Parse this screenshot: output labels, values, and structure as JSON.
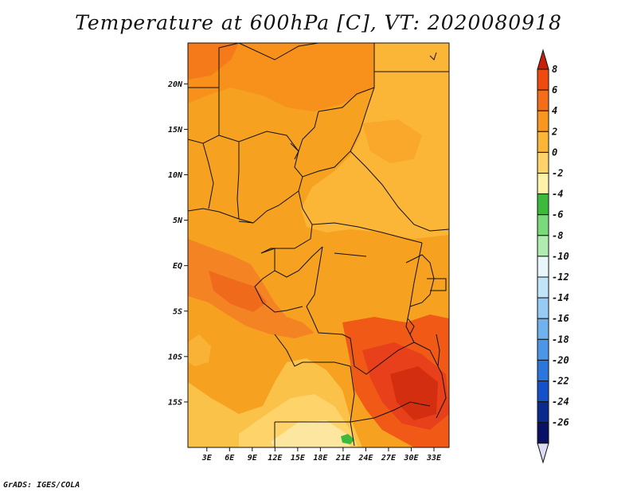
{
  "title": "Temperature at 600hPa [C], VT: 2020080918",
  "credit": "GrADS: IGES/COLA",
  "map": {
    "lat_ticks": [
      {
        "label": "20N",
        "value": 20
      },
      {
        "label": "15N",
        "value": 15
      },
      {
        "label": "10N",
        "value": 10
      },
      {
        "label": "5N",
        "value": 5
      },
      {
        "label": "EQ",
        "value": 0
      },
      {
        "label": "5S",
        "value": -5
      },
      {
        "label": "10S",
        "value": -10
      },
      {
        "label": "15S",
        "value": -15
      }
    ],
    "lon_ticks": [
      {
        "label": "3E",
        "value": 3
      },
      {
        "label": "6E",
        "value": 6
      },
      {
        "label": "9E",
        "value": 9
      },
      {
        "label": "12E",
        "value": 12
      },
      {
        "label": "15E",
        "value": 15
      },
      {
        "label": "18E",
        "value": 18
      },
      {
        "label": "21E",
        "value": 21
      },
      {
        "label": "24E",
        "value": 24
      },
      {
        "label": "27E",
        "value": 27
      },
      {
        "label": "30E",
        "value": 30
      },
      {
        "label": "33E",
        "value": 33
      }
    ],
    "lon_range": [
      0.5,
      35
    ],
    "lat_range": [
      -20,
      24.5
    ]
  },
  "colorbar": {
    "levels": [
      "8",
      "6",
      "4",
      "2",
      "0",
      "-2",
      "-4",
      "-6",
      "-8",
      "-10",
      "-12",
      "-14",
      "-16",
      "-18",
      "-20",
      "-22",
      "-24",
      "-26"
    ],
    "colors": [
      "#c81e0a",
      "#f04a0e",
      "#f46e1a",
      "#f7971f",
      "#fbb637",
      "#fed36a",
      "#fef2a8",
      "#3cba3c",
      "#7ad97a",
      "#b0ecb0",
      "#e8f6fc",
      "#c0e4f8",
      "#96ccf4",
      "#70b2ee",
      "#4c96e8",
      "#2a76dc",
      "#1450c8",
      "#0a2a8c",
      "#0a1066"
    ],
    "top_arrow_color": "#c81e0a",
    "bottom_arrow_color": "#dcdcf4"
  }
}
